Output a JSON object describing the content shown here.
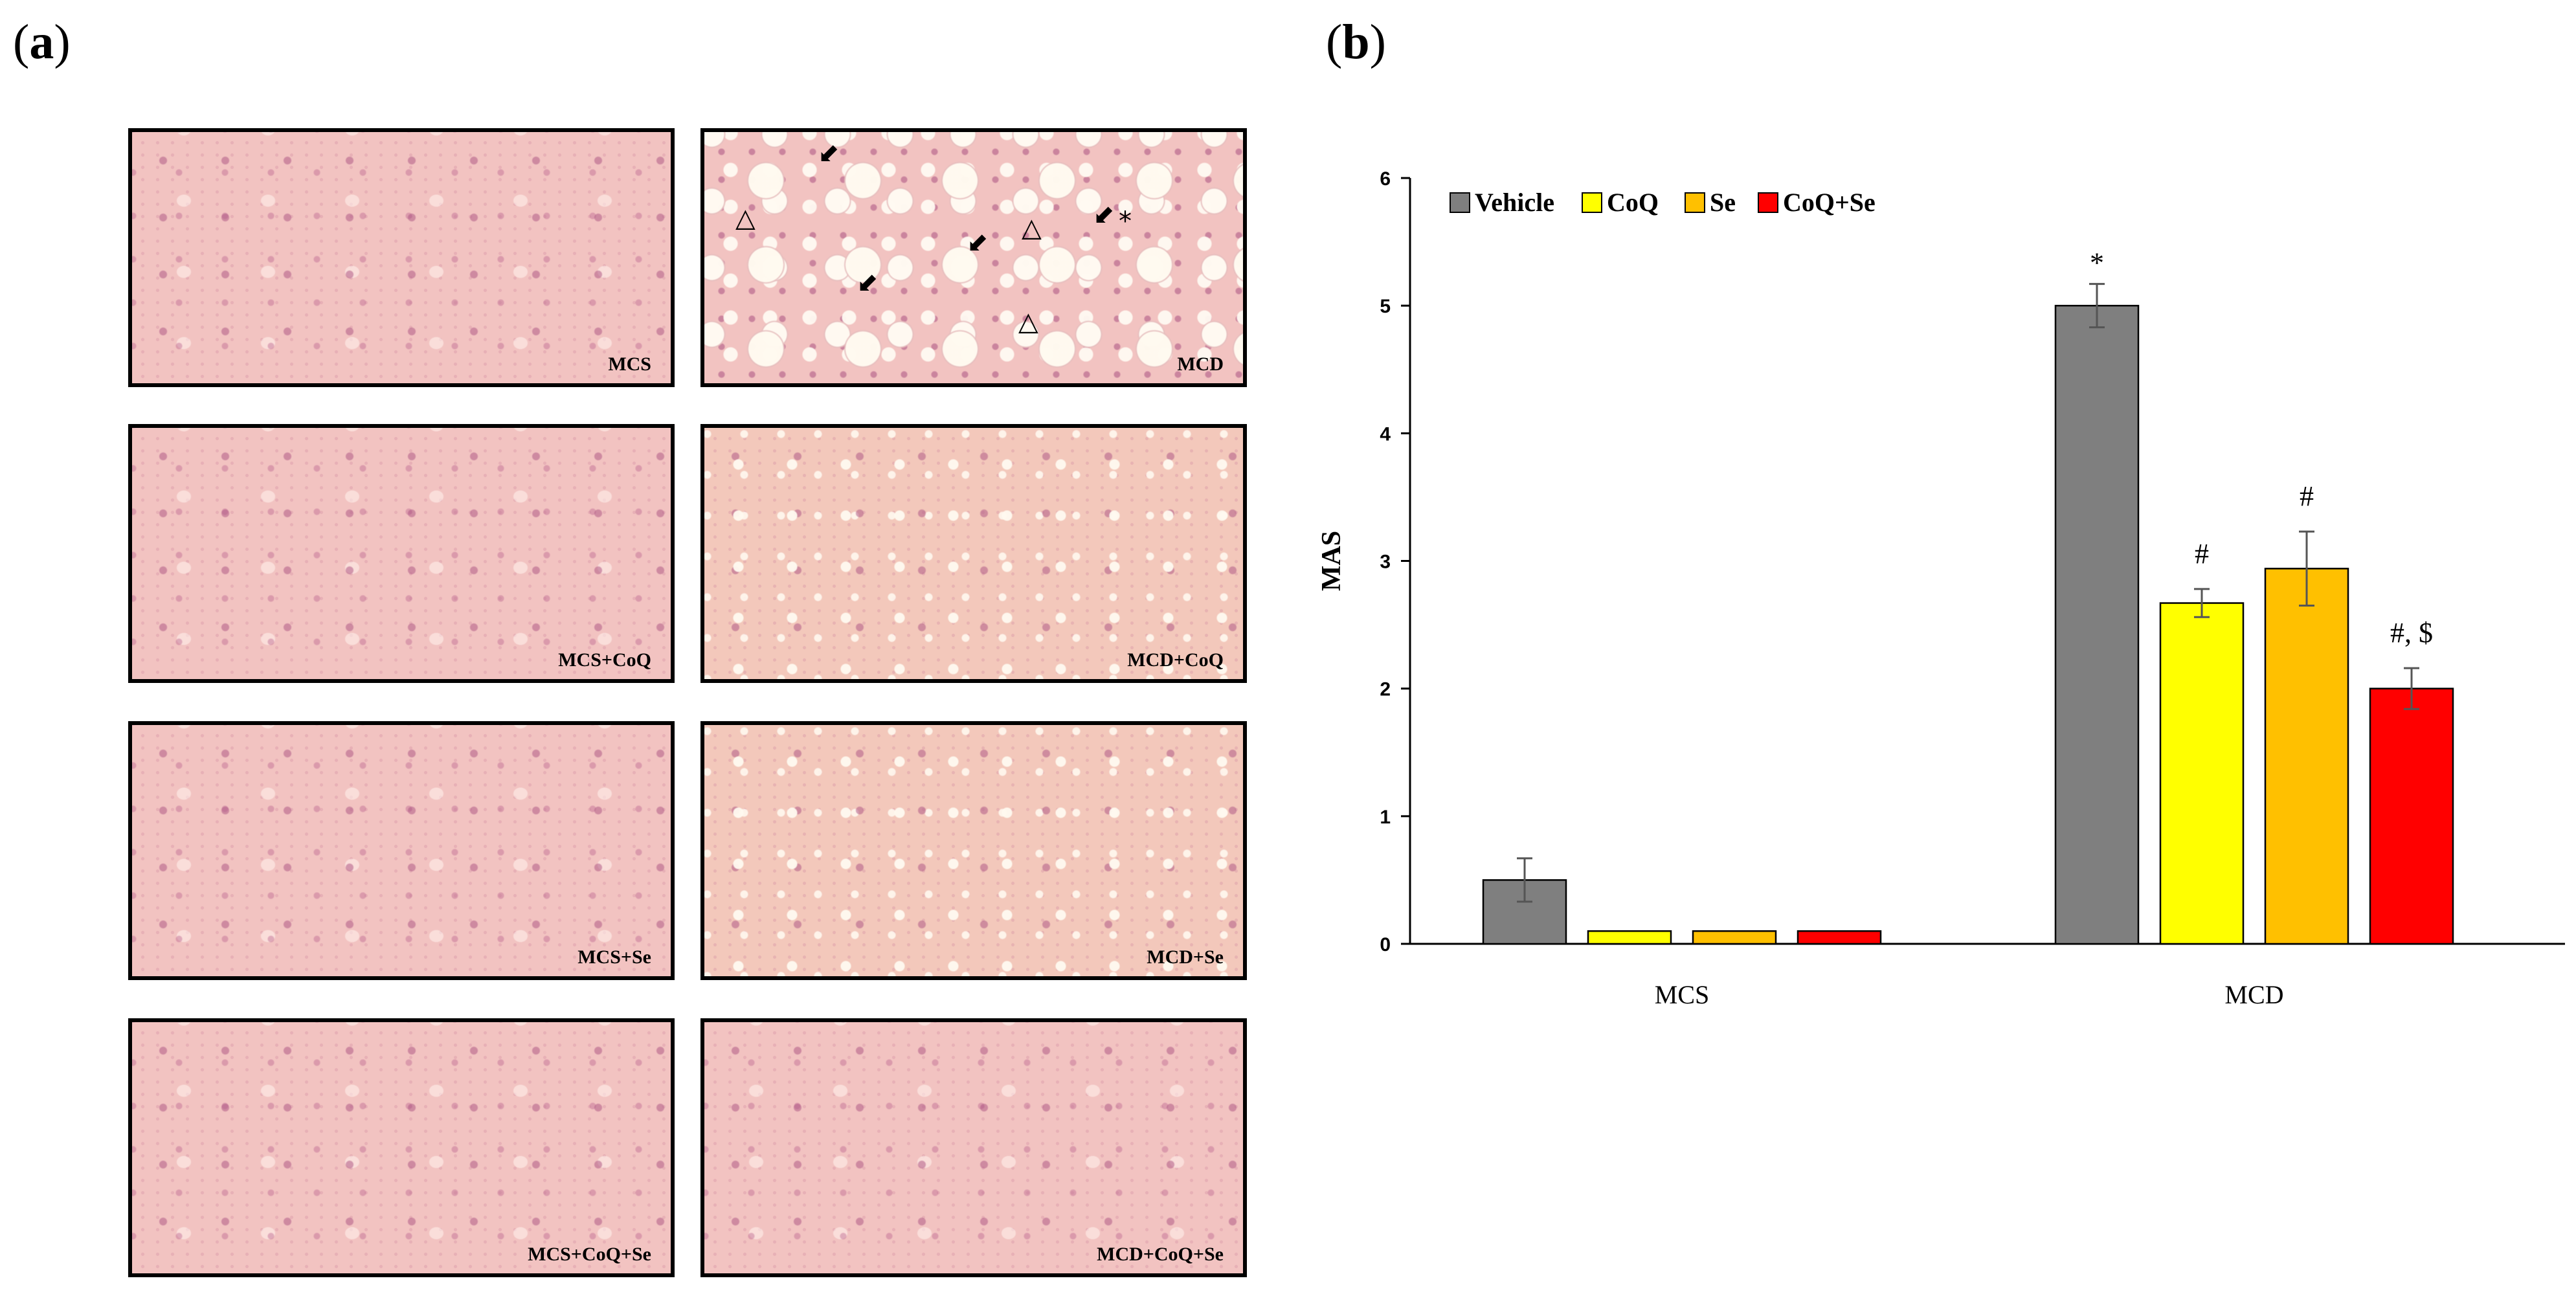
{
  "panel_labels": {
    "a": "a",
    "b": "b"
  },
  "histology": {
    "panels": [
      {
        "label": "MCS",
        "texture": "normal"
      },
      {
        "label": "MCD",
        "texture": "vac-heavy"
      },
      {
        "label": "MCS+CoQ",
        "texture": "normal"
      },
      {
        "label": "MCD+CoQ",
        "texture": "vac-mild"
      },
      {
        "label": "MCS+Se",
        "texture": "normal"
      },
      {
        "label": "MCD+Se",
        "texture": "vac-mild"
      },
      {
        "label": "MCS+CoQ+Se",
        "texture": "normal"
      },
      {
        "label": "MCD+CoQ+Se",
        "texture": "normal"
      }
    ],
    "markers": {
      "triangle": "△",
      "arrow": "⬋",
      "asterisk": "*"
    }
  },
  "chart_data": {
    "type": "bar",
    "categories": [
      "MCS",
      "MCD"
    ],
    "series": [
      {
        "name": "Vehicle",
        "color": "#7f7f7f",
        "values": [
          0.5,
          5.0
        ],
        "errors": [
          0.17,
          0.17
        ]
      },
      {
        "name": "CoQ",
        "color": "#ffff00",
        "values": [
          0.1,
          2.67
        ],
        "errors": [
          0.0,
          0.11
        ]
      },
      {
        "name": "Se",
        "color": "#ffc000",
        "values": [
          0.1,
          2.94
        ],
        "errors": [
          0.0,
          0.29
        ]
      },
      {
        "name": "CoQ+Se",
        "color": "#ff0000",
        "values": [
          0.1,
          2.0
        ],
        "errors": [
          0.0,
          0.16
        ]
      }
    ],
    "annotations": [
      {
        "category": "MCD",
        "series": "Vehicle",
        "text": "*"
      },
      {
        "category": "MCD",
        "series": "CoQ",
        "text": "#"
      },
      {
        "category": "MCD",
        "series": "Se",
        "text": "#"
      },
      {
        "category": "MCD",
        "series": "CoQ+Se",
        "text": "#, $"
      }
    ],
    "ylabel": "MAS",
    "xlabel": "",
    "ylim": [
      0,
      6
    ],
    "yticks": [
      0,
      1,
      2,
      3,
      4,
      5,
      6
    ],
    "grid": false,
    "legend": "top-left"
  }
}
